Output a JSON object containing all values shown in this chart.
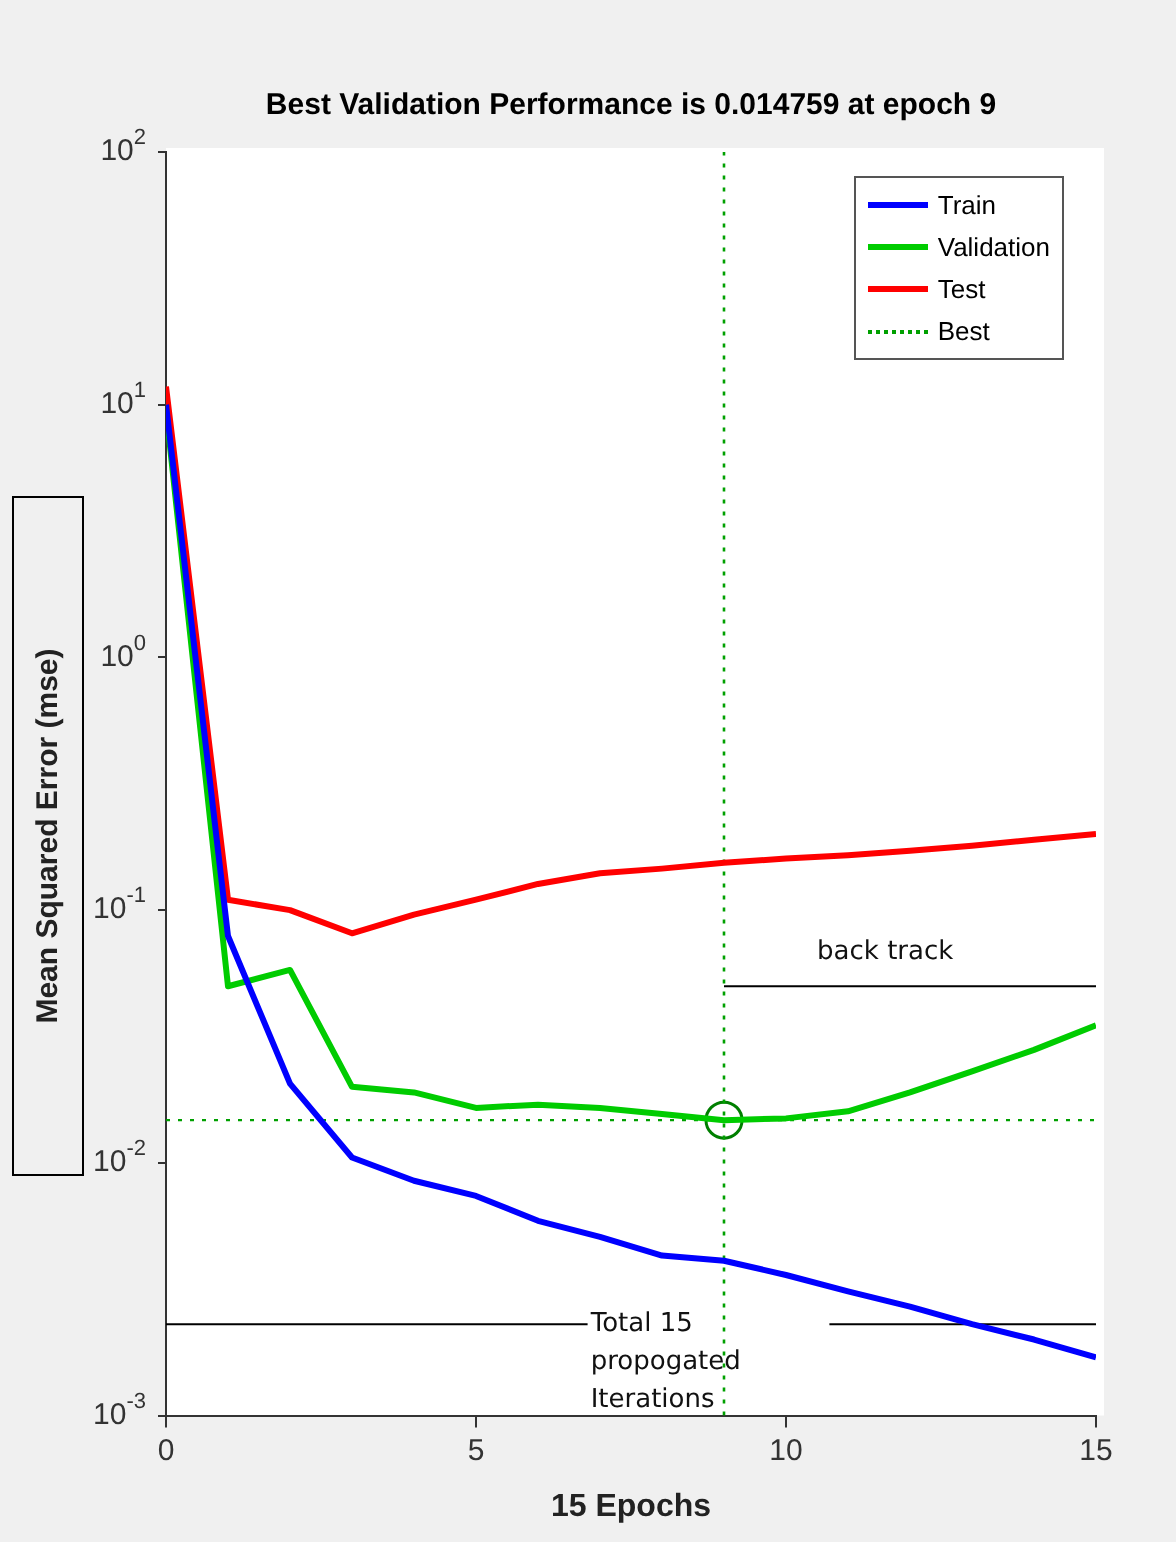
{
  "chart_data": {
    "type": "line",
    "title": "Best Validation Performance is 0.014759 at epoch 9",
    "xlabel": "15 Epochs",
    "ylabel": "Mean Squared Error  (mse)",
    "x": [
      0,
      1,
      2,
      3,
      4,
      5,
      6,
      7,
      8,
      9,
      10,
      11,
      12,
      13,
      14,
      15
    ],
    "series": [
      {
        "name": "Train",
        "color": "#0000ff",
        "values": [
          10,
          0.079,
          0.0206,
          0.0105,
          0.0085,
          0.0074,
          0.0059,
          0.0051,
          0.0043,
          0.0041,
          0.0036,
          0.0031,
          0.0027,
          0.0023,
          0.002,
          0.0017
        ]
      },
      {
        "name": "Validation",
        "color": "#00cc00",
        "values": [
          9.6,
          0.05,
          0.058,
          0.02,
          0.019,
          0.0165,
          0.017,
          0.0165,
          0.0156,
          0.014759,
          0.015,
          0.016,
          0.019,
          0.023,
          0.028,
          0.035
        ]
      },
      {
        "name": "Test",
        "color": "#ff0000",
        "values": [
          11.8,
          0.11,
          0.1,
          0.081,
          0.096,
          0.11,
          0.127,
          0.14,
          0.146,
          0.154,
          0.16,
          0.165,
          0.172,
          0.18,
          0.19,
          0.2
        ]
      },
      {
        "name": "Best",
        "type": "line",
        "color": "#00a000",
        "line_style": "dotted",
        "x": [
          9,
          9
        ],
        "values": [
          0.001,
          100
        ]
      },
      {
        "type": "scatter",
        "color": "#007f00",
        "marker": "circle",
        "x": [
          9
        ],
        "values": [
          0.014759
        ]
      },
      {
        "type": "line",
        "color": "#000000",
        "x": [
          9,
          15
        ],
        "values": [
          0.05,
          0.05
        ]
      },
      {
        "type": "line",
        "color": "#000000",
        "x": [
          0,
          6.8
        ],
        "values": [
          0.0023,
          0.0023
        ]
      },
      {
        "type": "line",
        "color": "#000000",
        "x": [
          10.7,
          15
        ],
        "values": [
          0.0023,
          0.0023
        ]
      }
    ],
    "xlim": [
      0,
      15
    ],
    "ylim": [
      0.001,
      100
    ],
    "xticks": [
      0,
      5,
      10,
      15
    ],
    "yticks": [
      {
        "value": 0.001,
        "label": "10$^{-3}$"
      },
      {
        "value": 0.01,
        "label": "10$^{-2}$"
      },
      {
        "value": 0.1,
        "label": "10$^{-1}$"
      },
      {
        "value": 1,
        "label": "10$^{0}$"
      },
      {
        "value": 10,
        "label": "10$^{1}$"
      },
      {
        "value": 100,
        "label": "10$^{2}$"
      }
    ],
    "log": "y",
    "grid": false,
    "legend": "top right",
    "ref_lines": [
      {
        "axis": "y",
        "value": 0.014759,
        "color": "#00a000",
        "line_style": "dotted"
      }
    ],
    "annotations": [
      {
        "text": "back track",
        "x": 11.6,
        "y": 0.05
      },
      {
        "text": "Total 15 propogated Iterations",
        "x": 6.85,
        "y": 0.0023
      }
    ]
  }
}
